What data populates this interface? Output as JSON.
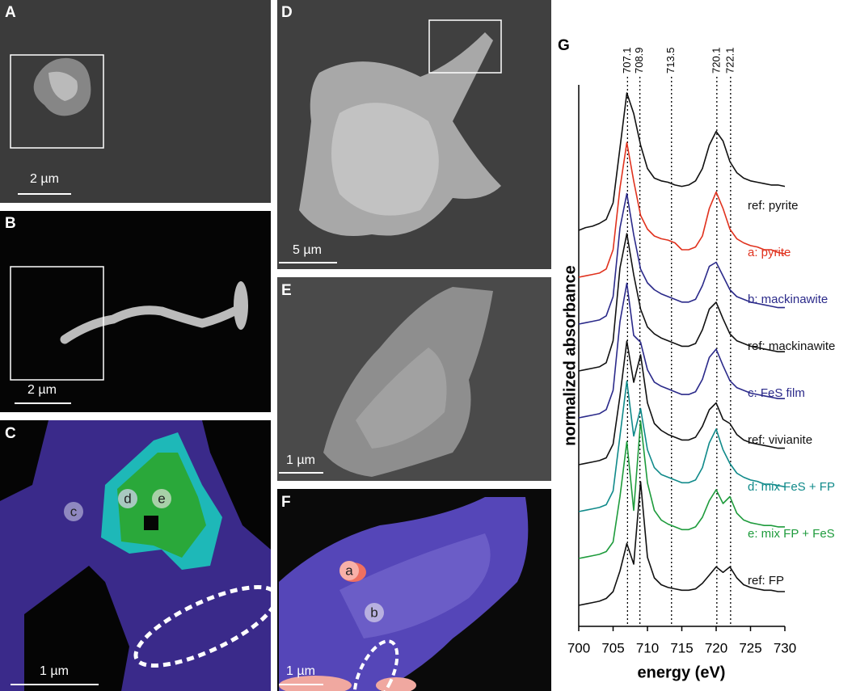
{
  "panels": [
    {
      "letter": "A",
      "scale_bar": "2 µm"
    },
    {
      "letter": "B",
      "scale_bar": "2 µm"
    },
    {
      "letter": "C",
      "scale_bar": "1 µm",
      "points": [
        "c",
        "d",
        "e"
      ]
    },
    {
      "letter": "D",
      "scale_bar": "5 µm"
    },
    {
      "letter": "E",
      "scale_bar": "1 µm"
    },
    {
      "letter": "F",
      "scale_bar": "1 µm",
      "points": [
        "a",
        "b"
      ]
    }
  ],
  "chart_data": {
    "type": "line",
    "letter": "G",
    "x_label": "energy (eV)",
    "y_label": "normalized absorbance",
    "x": [
      700,
      701,
      702,
      703,
      704,
      705,
      706,
      707,
      708,
      709,
      710,
      711,
      712,
      713,
      714,
      715,
      716,
      717,
      718,
      719,
      720,
      721,
      722,
      723,
      724,
      725,
      726,
      727,
      728,
      729,
      730
    ],
    "xlim": [
      700,
      730
    ],
    "xticks": [
      700,
      705,
      710,
      715,
      720,
      725,
      730
    ],
    "reference_lines": [
      707.1,
      708.9,
      713.5,
      720.1,
      722.1
    ],
    "series": [
      {
        "name": "ref: pyrite",
        "color": "#111111",
        "values": [
          0,
          0.02,
          0.03,
          0.05,
          0.08,
          0.2,
          0.6,
          1.0,
          0.85,
          0.62,
          0.45,
          0.38,
          0.36,
          0.35,
          0.33,
          0.32,
          0.33,
          0.36,
          0.45,
          0.62,
          0.72,
          0.65,
          0.5,
          0.42,
          0.38,
          0.36,
          0.35,
          0.34,
          0.33,
          0.33,
          0.32
        ]
      },
      {
        "name": "a: pyrite",
        "color": "#e0321e",
        "values": [
          0,
          0.01,
          0.02,
          0.03,
          0.06,
          0.2,
          0.65,
          0.98,
          0.7,
          0.45,
          0.35,
          0.3,
          0.28,
          0.27,
          0.25,
          0.2,
          0.2,
          0.22,
          0.3,
          0.5,
          0.62,
          0.5,
          0.35,
          0.28,
          0.25,
          0.23,
          0.22,
          0.2,
          0.2,
          0.18,
          0.17
        ]
      },
      {
        "name": "b: mackinawite",
        "color": "#2b2a8a",
        "values": [
          0,
          0.01,
          0.02,
          0.03,
          0.06,
          0.2,
          0.7,
          0.95,
          0.65,
          0.4,
          0.3,
          0.25,
          0.22,
          0.2,
          0.18,
          0.16,
          0.16,
          0.18,
          0.28,
          0.42,
          0.45,
          0.35,
          0.25,
          0.2,
          0.18,
          0.16,
          0.15,
          0.14,
          0.13,
          0.12,
          0.12
        ]
      },
      {
        "name": "ref: mackinawite",
        "color": "#111111",
        "values": [
          0,
          0.01,
          0.02,
          0.03,
          0.06,
          0.22,
          0.75,
          1.0,
          0.7,
          0.45,
          0.32,
          0.27,
          0.24,
          0.22,
          0.2,
          0.18,
          0.18,
          0.2,
          0.3,
          0.45,
          0.5,
          0.38,
          0.27,
          0.22,
          0.2,
          0.18,
          0.17,
          0.16,
          0.15,
          0.14,
          0.14
        ]
      },
      {
        "name": "c: FeS film",
        "color": "#2b2a8a",
        "values": [
          0,
          0.01,
          0.02,
          0.03,
          0.06,
          0.2,
          0.7,
          0.98,
          0.6,
          0.55,
          0.35,
          0.26,
          0.23,
          0.21,
          0.19,
          0.17,
          0.17,
          0.19,
          0.28,
          0.44,
          0.5,
          0.38,
          0.27,
          0.22,
          0.2,
          0.18,
          0.17,
          0.16,
          0.15,
          0.14,
          0.14
        ]
      },
      {
        "name": "ref: vivianite",
        "color": "#111111",
        "values": [
          0,
          0.01,
          0.02,
          0.03,
          0.05,
          0.15,
          0.5,
          0.9,
          0.6,
          0.8,
          0.45,
          0.3,
          0.25,
          0.22,
          0.2,
          0.18,
          0.18,
          0.2,
          0.28,
          0.4,
          0.45,
          0.33,
          0.3,
          0.22,
          0.18,
          0.16,
          0.15,
          0.14,
          0.13,
          0.12,
          0.12
        ]
      },
      {
        "name": "d: mix FeS + FP",
        "color": "#108a8a",
        "values": [
          0,
          0.01,
          0.02,
          0.03,
          0.05,
          0.15,
          0.55,
          0.95,
          0.55,
          0.75,
          0.45,
          0.32,
          0.27,
          0.25,
          0.23,
          0.21,
          0.21,
          0.23,
          0.32,
          0.5,
          0.6,
          0.45,
          0.35,
          0.28,
          0.25,
          0.23,
          0.22,
          0.2,
          0.2,
          0.19,
          0.18
        ]
      },
      {
        "name": "e: mix FP + FeS",
        "color": "#1e9b3c",
        "values": [
          0,
          0.01,
          0.02,
          0.03,
          0.05,
          0.12,
          0.45,
          0.85,
          0.35,
          1.0,
          0.55,
          0.35,
          0.28,
          0.25,
          0.23,
          0.21,
          0.21,
          0.23,
          0.3,
          0.42,
          0.5,
          0.4,
          0.45,
          0.33,
          0.28,
          0.26,
          0.25,
          0.24,
          0.24,
          0.23,
          0.23
        ]
      },
      {
        "name": "ref: FP",
        "color": "#111111",
        "values": [
          0,
          0.01,
          0.02,
          0.03,
          0.05,
          0.1,
          0.25,
          0.45,
          0.3,
          0.9,
          0.35,
          0.2,
          0.15,
          0.13,
          0.12,
          0.11,
          0.11,
          0.12,
          0.16,
          0.22,
          0.28,
          0.24,
          0.28,
          0.2,
          0.15,
          0.13,
          0.12,
          0.11,
          0.11,
          0.1,
          0.1
        ]
      }
    ]
  }
}
